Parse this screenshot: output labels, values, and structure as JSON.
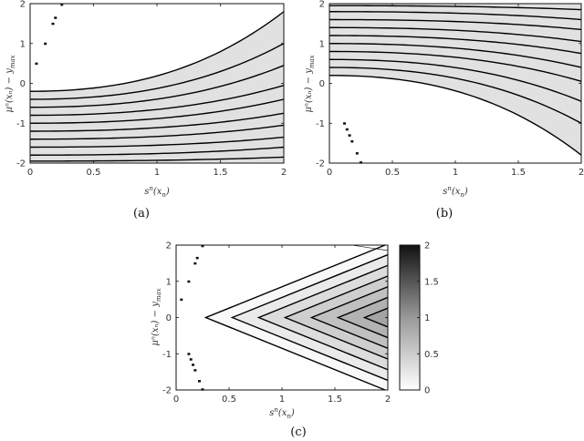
{
  "chart_data": [
    {
      "id": "a",
      "type": "contour",
      "caption": "(a)",
      "xlabel": "s^n(x_n)",
      "ylabel": "μ^n(x_n) − y_max",
      "xlim": [
        0,
        2
      ],
      "ylim": [
        -2,
        2
      ],
      "xticks": [
        "0",
        "0.5",
        "1",
        "1.5",
        "2"
      ],
      "yticks": [
        "-2",
        "-1",
        "0",
        "1",
        "2"
      ],
      "description": "Contour levels curve upward with s; shading darkens toward y=-2",
      "contour_levels_at_s0": [
        -0.2,
        -0.4,
        -0.6,
        -0.8,
        -1.0,
        -1.2,
        -1.4,
        -1.6,
        -1.8,
        -1.95
      ],
      "contour_levels_at_s2": [
        1.8,
        1.0,
        0.45,
        -0.05,
        -0.4,
        -0.75,
        -1.05,
        -1.35,
        -1.6,
        -1.85
      ],
      "points": [
        [
          0.05,
          0.5
        ],
        [
          0.12,
          1.0
        ],
        [
          0.18,
          1.5
        ],
        [
          0.2,
          1.65
        ],
        [
          0.25,
          1.98
        ]
      ]
    },
    {
      "id": "b",
      "type": "contour",
      "caption": "(b)",
      "xlabel": "s^n(x_n)",
      "ylabel": "μ^n(x_n) − y_max",
      "xlim": [
        0,
        2
      ],
      "ylim": [
        -2,
        2
      ],
      "xticks": [
        "0",
        "0.5",
        "1",
        "1.5",
        "2"
      ],
      "yticks": [
        "-2",
        "-1",
        "0",
        "1",
        "2"
      ],
      "description": "Contour levels curve downward with s; shading darkens toward y=2",
      "contour_levels_at_s0": [
        0.2,
        0.4,
        0.6,
        0.8,
        1.0,
        1.2,
        1.4,
        1.6,
        1.8,
        1.95
      ],
      "contour_levels_at_s2": [
        -1.8,
        -1.0,
        -0.45,
        0.05,
        0.4,
        0.75,
        1.05,
        1.35,
        1.6,
        1.85
      ],
      "points": [
        [
          0.12,
          -1.0
        ],
        [
          0.14,
          -1.15
        ],
        [
          0.16,
          -1.3
        ],
        [
          0.18,
          -1.45
        ],
        [
          0.22,
          -1.75
        ],
        [
          0.25,
          -1.98
        ]
      ]
    },
    {
      "id": "c",
      "type": "contour",
      "caption": "(c)",
      "xlabel": "s^n(x_n)",
      "ylabel": "μ^n(x_n) − y_max",
      "xlim": [
        0,
        2
      ],
      "ylim": [
        -2,
        2
      ],
      "xticks": [
        "0",
        "0.5",
        "1",
        "1.5",
        "2"
      ],
      "yticks": [
        "-2",
        "-1",
        "0",
        "1",
        "2"
      ],
      "description": "Wedge-shaped contours with apexes on y=0, opening to the right",
      "apex_s": [
        0.28,
        0.53,
        0.78,
        1.03,
        1.28,
        1.53,
        1.78
      ],
      "points": [
        [
          0.05,
          0.5
        ],
        [
          0.12,
          1.0
        ],
        [
          0.18,
          1.5
        ],
        [
          0.2,
          1.65
        ],
        [
          0.25,
          1.98
        ],
        [
          0.12,
          -1.0
        ],
        [
          0.14,
          -1.15
        ],
        [
          0.16,
          -1.3
        ],
        [
          0.18,
          -1.45
        ],
        [
          0.22,
          -1.75
        ],
        [
          0.25,
          -1.98
        ]
      ],
      "colorbar": {
        "min": 0,
        "max": 2,
        "ticks": [
          "0",
          "0.5",
          "1",
          "1.5",
          "2"
        ]
      }
    }
  ],
  "labels": {
    "xlabel_base": "s",
    "xlabel_sup": "n",
    "xlabel_arg": "(x",
    "xlabel_sub": "n",
    "xlabel_close": ")",
    "ylabel_text": "μⁿ(xₙ) − y",
    "ylabel_sub": "max",
    "caption_a": "(a)",
    "caption_b": "(b)",
    "caption_c": "(c)",
    "cb_ticks": [
      "2",
      "1.5",
      "1",
      "0.5",
      "0"
    ]
  }
}
